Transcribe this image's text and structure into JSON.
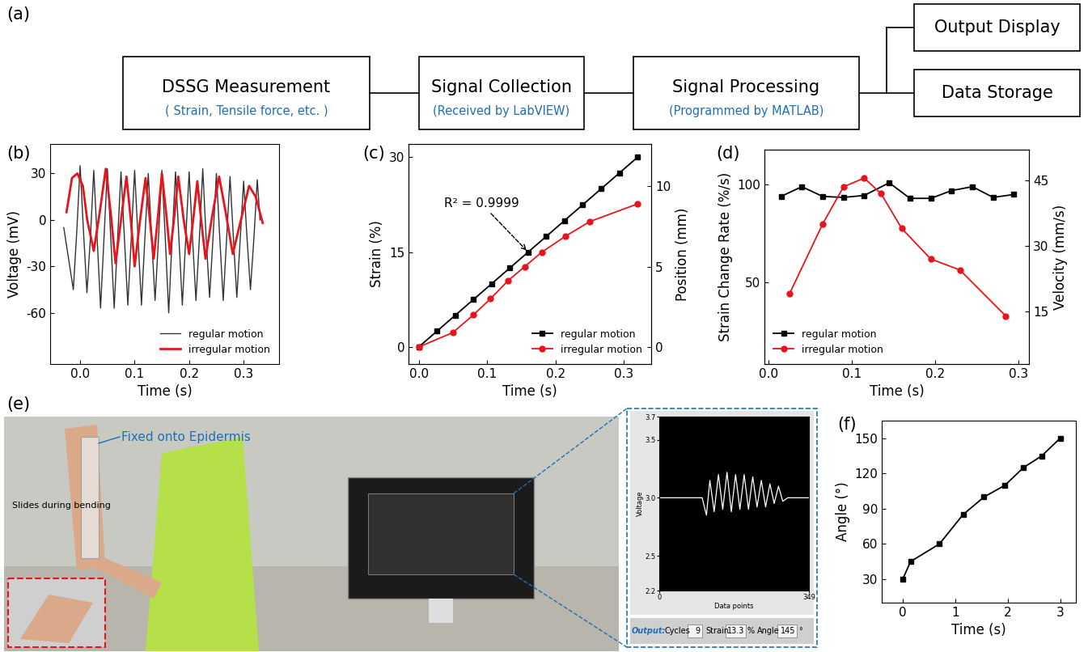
{
  "diagram": {
    "title": "(a)",
    "nodes": [
      {
        "title": "DSSG Measurement",
        "subtitle": "( Strain, Tensile force, etc. )"
      },
      {
        "title": "Signal Collection",
        "subtitle": "(Received by LabVIEW)"
      },
      {
        "title": "Signal Processing",
        "subtitle": "(Programmed by MATLAB)"
      },
      {
        "title": "Output Display"
      },
      {
        "title": "Data Storage"
      }
    ]
  },
  "chart_data": [
    {
      "type": "line",
      "title": "(b)",
      "x_label": "Time (s)",
      "y_label": "Voltage (mV)",
      "xlim": [
        -0.055,
        0.365
      ],
      "ylim": [
        -93,
        49
      ],
      "xticks": [
        0.0,
        0.1,
        0.2,
        0.3
      ],
      "yticks": [
        -60,
        -30,
        0,
        30
      ],
      "legend": "lower right",
      "series": [
        {
          "name": "regular motion",
          "color": "#333333",
          "marker": "none",
          "line_style": "solid",
          "x": [
            -0.03,
            -0.0125,
            -0.00625,
            0.0,
            0.00625,
            0.0125,
            0.01875,
            0.025,
            0.03125,
            0.0375,
            0.04375,
            0.05,
            0.05625,
            0.0625,
            0.06875,
            0.075,
            0.08125,
            0.0875,
            0.09375,
            0.1,
            0.10625,
            0.1125,
            0.11875,
            0.125,
            0.13125,
            0.1375,
            0.14375,
            0.15,
            0.15625,
            0.1625,
            0.16875,
            0.175,
            0.18125,
            0.1875,
            0.19375,
            0.2,
            0.20625,
            0.2125,
            0.21875,
            0.225,
            0.23125,
            0.2375,
            0.24375,
            0.25,
            0.25625,
            0.2625,
            0.26875,
            0.275,
            0.28125,
            0.2875,
            0.29375,
            0.3,
            0.30625,
            0.3125,
            0.31875,
            0.325,
            0.33
          ],
          "values": [
            -5,
            -45,
            -8,
            35,
            -8,
            -47,
            -12,
            32,
            -12,
            -57,
            -12,
            33,
            -12,
            -57,
            -12,
            31,
            -12,
            -55,
            -12,
            32,
            -12,
            -55,
            -12,
            30,
            -12,
            -52,
            -12,
            32,
            -12,
            -60,
            -12,
            31,
            -12,
            -55,
            -12,
            31,
            -12,
            -52,
            -12,
            33,
            -12,
            -50,
            -12,
            30,
            -12,
            -52,
            -12,
            28,
            -12,
            -50,
            -12,
            25,
            -12,
            -45,
            -12,
            26,
            0
          ]
        },
        {
          "name": "irregular motion",
          "color": "#e8141c",
          "marker": "none",
          "line_style": "solid",
          "x": [
            -0.025,
            -0.015,
            -0.005,
            0.005,
            0.013,
            0.025,
            0.036,
            0.047,
            0.056,
            0.065,
            0.075,
            0.085,
            0.093,
            0.1,
            0.11,
            0.12,
            0.128,
            0.135,
            0.143,
            0.15,
            0.158,
            0.165,
            0.173,
            0.18,
            0.19,
            0.2,
            0.208,
            0.215,
            0.222,
            0.23,
            0.242,
            0.255,
            0.268,
            0.28,
            0.295,
            0.31,
            0.322,
            0.335
          ],
          "values": [
            5,
            27,
            30,
            22,
            0,
            -20,
            5,
            33,
            5,
            -28,
            0,
            28,
            0,
            -30,
            0,
            27,
            0,
            -25,
            3,
            30,
            4,
            -22,
            3,
            28,
            0,
            -22,
            2,
            25,
            0,
            -25,
            2,
            28,
            3,
            -22,
            0,
            22,
            15,
            -2
          ]
        }
      ]
    },
    {
      "type": "line",
      "title": "(c)",
      "x_label": "Time (s)",
      "y_label": "Strain (%)",
      "y2_label": "Position (mm)",
      "xlim": [
        -0.015,
        0.34
      ],
      "ylim": [
        -2.7,
        32.1
      ],
      "y2lim": [
        -1.06,
        12.63
      ],
      "xticks": [
        0.0,
        0.1,
        0.2,
        0.3
      ],
      "yticks": [
        0,
        15,
        30
      ],
      "y2ticks": [
        0,
        5,
        10
      ],
      "legend": "lower right",
      "annotations": [
        {
          "text": "R² = 0.9999",
          "x": 0.16,
          "y": 15
        }
      ],
      "series": [
        {
          "name": "regular motion",
          "color": "#000000",
          "marker": "square",
          "line_style": "solid",
          "x": [
            0,
            0.0267,
            0.0533,
            0.08,
            0.1067,
            0.1333,
            0.16,
            0.1867,
            0.2133,
            0.24,
            0.2667,
            0.2933,
            0.32
          ],
          "values": [
            0,
            2.5,
            5,
            7.5,
            10,
            12.5,
            15,
            17.5,
            20,
            22.5,
            25,
            27.5,
            30
          ]
        },
        {
          "name": "irregular motion",
          "color": "#e8141c",
          "marker": "circle",
          "line_style": "solid",
          "axis": "y2",
          "x": [
            0,
            0.05,
            0.08,
            0.105,
            0.13,
            0.155,
            0.18,
            0.215,
            0.25,
            0.32
          ],
          "values": [
            0,
            0.9,
            2.0,
            3.0,
            4.1,
            5.0,
            5.9,
            6.9,
            7.8,
            8.9
          ]
        }
      ]
    },
    {
      "type": "line",
      "title": "(d)",
      "x_label": "Time (s)",
      "y_label": "Strain Change Rate (%/s)",
      "y2_label": "Velocity (mm/s)",
      "xlim": [
        -0.005,
        0.313
      ],
      "ylim": [
        8,
        118
      ],
      "y2lim": [
        3,
        52
      ],
      "xticks": [
        0.0,
        0.1,
        0.2,
        0.3
      ],
      "yticks": [
        50,
        100
      ],
      "y2ticks": [
        15,
        30,
        45
      ],
      "legend": "lower left",
      "series": [
        {
          "name": "regular motion",
          "color": "#000000",
          "marker": "square",
          "line_style": "solid",
          "x": [
            0.015,
            0.04,
            0.065,
            0.09,
            0.115,
            0.145,
            0.17,
            0.195,
            0.22,
            0.245,
            0.27,
            0.295
          ],
          "values": [
            94,
            99,
            94,
            93.5,
            94.5,
            101,
            93,
            93,
            97,
            99,
            93.5,
            95
          ]
        },
        {
          "name": "irregular motion",
          "color": "#e8141c",
          "marker": "circle",
          "line_style": "solid",
          "axis": "y2",
          "x": [
            0.025,
            0.065,
            0.09,
            0.115,
            0.135,
            0.16,
            0.195,
            0.23,
            0.285
          ],
          "values": [
            19,
            35,
            43.5,
            45.5,
            42,
            34,
            27,
            24.5,
            14
          ]
        }
      ]
    },
    {
      "type": "line",
      "title": "(f)",
      "x_label": "Time (s)",
      "y_label": "Angle (°)",
      "xlim": [
        -0.4,
        3.3
      ],
      "ylim": [
        10,
        165
      ],
      "xticks": [
        0,
        1,
        2,
        3
      ],
      "yticks": [
        30,
        60,
        90,
        120,
        150
      ],
      "series": [
        {
          "name": "angle",
          "color": "#000000",
          "marker": "square",
          "line_style": "solid",
          "x": [
            0,
            0.15,
            0.7,
            1.15,
            1.55,
            1.95,
            2.3,
            2.65,
            3.0
          ],
          "values": [
            30,
            45,
            60,
            85,
            100,
            110,
            125,
            135,
            150
          ]
        }
      ]
    }
  ],
  "photo": {
    "title": "(e)",
    "annotations": [
      "Fixed onto Epidermis",
      "Slides during bending"
    ]
  },
  "screenshot": {
    "chart": {
      "type": "line",
      "x_label": "Data points",
      "y_label": "Voltage",
      "xlim": [
        0,
        349
      ],
      "ylim": [
        2.2,
        3.7
      ],
      "xticks": [
        0,
        349
      ],
      "yticks": [
        2.2,
        2.5,
        3.0,
        3.5,
        3.7
      ],
      "series": [
        {
          "name": "voltage",
          "color": "#ffffff",
          "marker": "none",
          "line_style": "solid",
          "x": [
            0,
            100,
            110,
            118,
            128,
            138,
            148,
            158,
            168,
            178,
            188,
            198,
            208,
            218,
            228,
            238,
            248,
            258,
            268,
            278,
            288,
            300,
            349
          ],
          "values": [
            3.0,
            3.0,
            2.85,
            3.15,
            2.88,
            3.2,
            2.9,
            3.22,
            2.88,
            3.2,
            2.9,
            3.2,
            2.9,
            3.18,
            2.92,
            3.15,
            2.92,
            3.12,
            2.95,
            3.1,
            2.97,
            3.0,
            3.0
          ]
        }
      ]
    },
    "output": {
      "title": "Output:",
      "fields": [
        {
          "name": "Cycles",
          "value": 9
        },
        {
          "name": "Strain",
          "value": 13.3,
          "unit": "%"
        },
        {
          "name": "Angle",
          "value": 145,
          "unit": "°"
        }
      ]
    }
  }
}
